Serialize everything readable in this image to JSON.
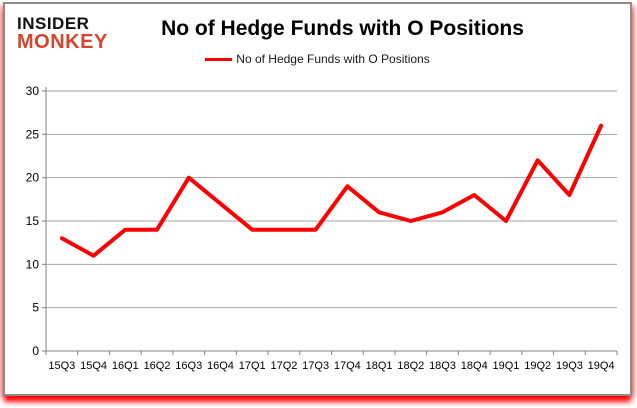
{
  "logo": {
    "line1": "INSIDER",
    "line2": "MONKEY"
  },
  "title": "No of Hedge Funds with O Positions",
  "legend": {
    "label": "No of Hedge Funds with O Positions",
    "swatch_color": "#ff0000"
  },
  "colors": {
    "line": "#ff0000",
    "grid": "#a6a6a6",
    "axis": "#808080",
    "logo_black": "#111111",
    "logo_red": "#d6452c",
    "border": "#8c8c8c",
    "glow": "#ff0000"
  },
  "chart_data": {
    "type": "line",
    "title": "No of Hedge Funds with O Positions",
    "categories": [
      "15Q3",
      "15Q4",
      "16Q1",
      "16Q2",
      "16Q3",
      "16Q4",
      "17Q1",
      "17Q2",
      "17Q3",
      "17Q4",
      "18Q1",
      "18Q2",
      "18Q3",
      "18Q4",
      "19Q1",
      "19Q2",
      "19Q3",
      "19Q4"
    ],
    "series": [
      {
        "name": "No of Hedge Funds with O Positions",
        "color": "#ff0000",
        "values": [
          13,
          11,
          14,
          14,
          20,
          17,
          14,
          14,
          14,
          19,
          16,
          15,
          16,
          18,
          15,
          22,
          18,
          26
        ]
      }
    ],
    "xlabel": "",
    "ylabel": "",
    "ylim": [
      0,
      30
    ],
    "yticks": [
      0,
      5,
      10,
      15,
      20,
      25,
      30
    ],
    "grid": true,
    "legend_position": "top"
  }
}
